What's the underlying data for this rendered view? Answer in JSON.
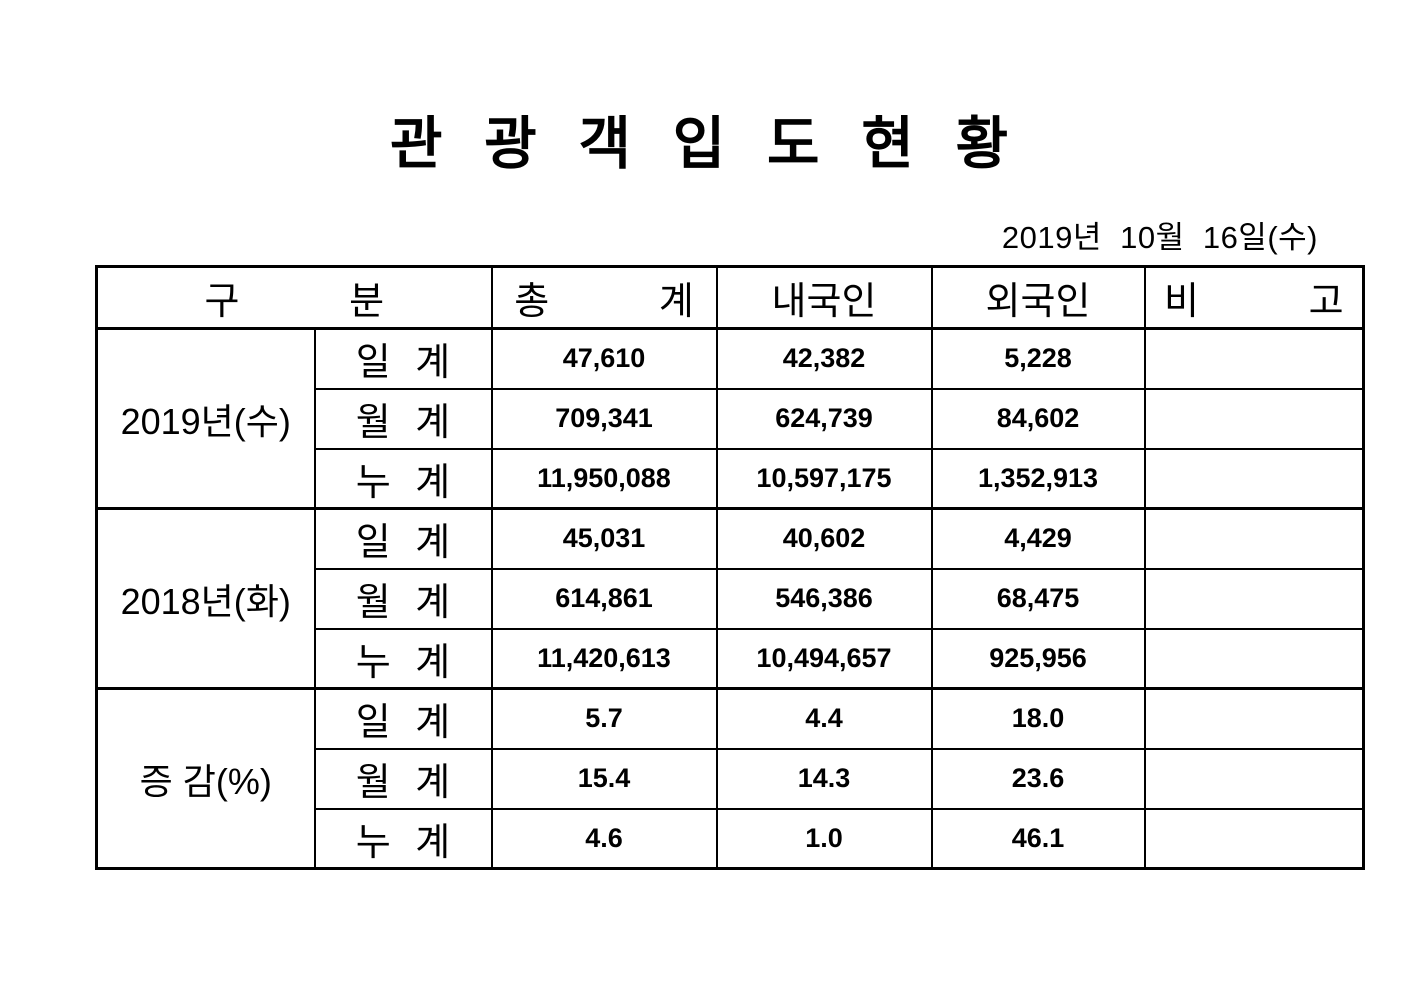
{
  "page": {
    "title": "관 광 객 입 도 현 황",
    "date": "2019년  10월  16일(수)"
  },
  "table": {
    "headers": {
      "category": "구   분",
      "total": "총   계",
      "domestic": "내국인",
      "foreign": "외국인",
      "note": "비   고"
    },
    "groups": [
      {
        "label": "2019년(수)",
        "rows": [
          {
            "label": "일 계",
            "total": "47,610",
            "domestic": "42,382",
            "foreign": "5,228",
            "note": ""
          },
          {
            "label": "월 계",
            "total": "709,341",
            "domestic": "624,739",
            "foreign": "84,602",
            "note": ""
          },
          {
            "label": "누 계",
            "total": "11,950,088",
            "domestic": "10,597,175",
            "foreign": "1,352,913",
            "note": ""
          }
        ]
      },
      {
        "label": "2018년(화)",
        "rows": [
          {
            "label": "일 계",
            "total": "45,031",
            "domestic": "40,602",
            "foreign": "4,429",
            "note": ""
          },
          {
            "label": "월 계",
            "total": "614,861",
            "domestic": "546,386",
            "foreign": "68,475",
            "note": ""
          },
          {
            "label": "누 계",
            "total": "11,420,613",
            "domestic": "10,494,657",
            "foreign": "925,956",
            "note": ""
          }
        ]
      },
      {
        "label": "증 감(%)",
        "rows": [
          {
            "label": "일 계",
            "total": "5.7",
            "domestic": "4.4",
            "foreign": "18.0",
            "note": ""
          },
          {
            "label": "월 계",
            "total": "15.4",
            "domestic": "14.3",
            "foreign": "23.6",
            "note": ""
          },
          {
            "label": "누 계",
            "total": "4.6",
            "domestic": "1.0",
            "foreign": "46.1",
            "note": ""
          }
        ]
      }
    ]
  }
}
